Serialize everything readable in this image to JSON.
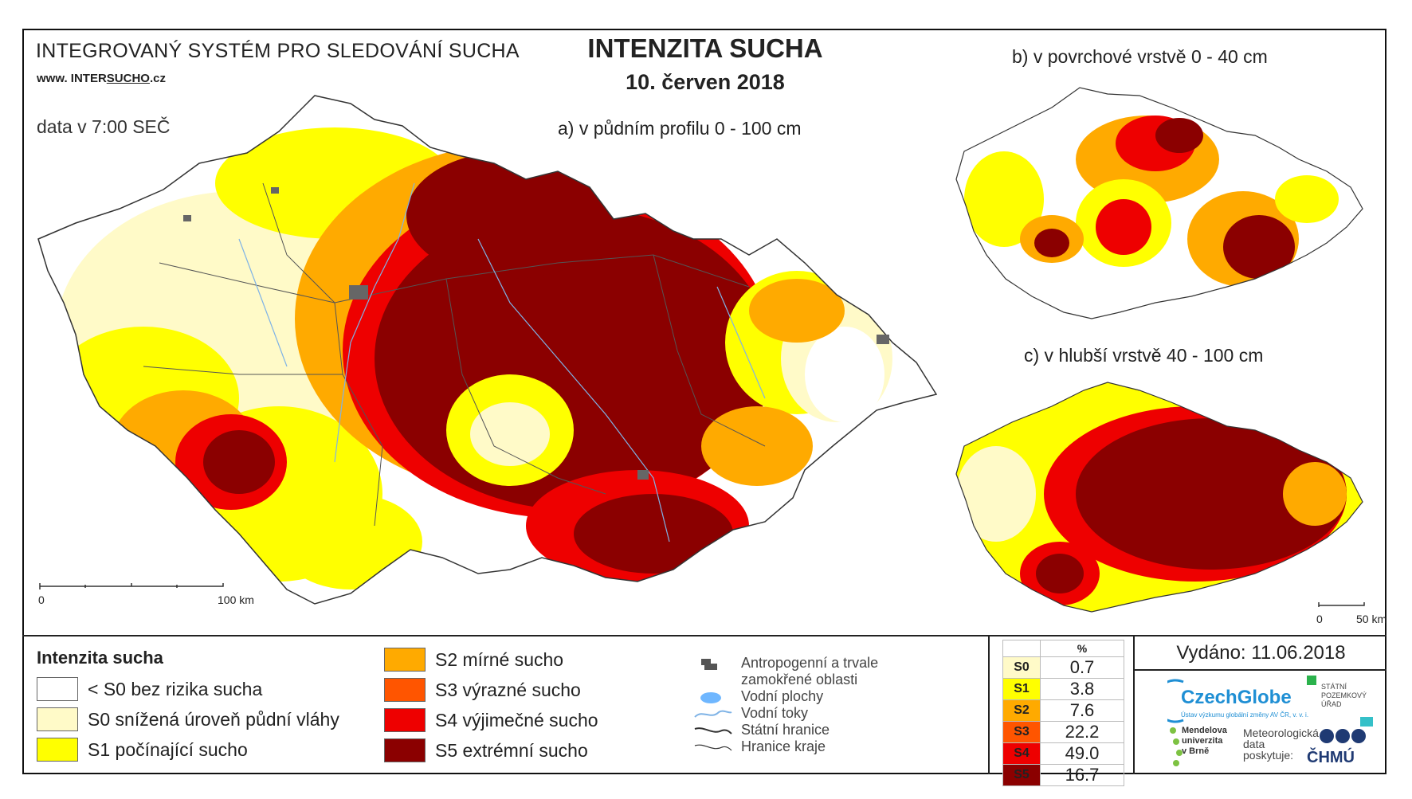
{
  "header": {
    "system_title": "INTEGROVANÝ SYSTÉM PRO SLEDOVÁNÍ SUCHA",
    "url_prefix": "www. INTER",
    "url_mid": "SUCHO",
    "url_suffix": ".cz",
    "data_time": "data v 7:00 SEČ",
    "main_title": "INTENZITA SUCHA",
    "date": "10. červen 2018"
  },
  "maps": {
    "a_label": "a) v půdním profilu 0 - 100 cm",
    "b_label": "b) v povrchové vrstvě 0 - 40 cm",
    "c_label": "c) v hlubší vrstvě 40 - 100 cm",
    "scale_a_start": "0",
    "scale_a_end": "100 km",
    "scale_c_start": "0",
    "scale_c_end": "50 km"
  },
  "legend": {
    "title": "Intenzita sucha",
    "items": [
      {
        "label": "< S0 bez rizika sucha",
        "color": "#ffffff"
      },
      {
        "label": "S0 snížená úroveň půdní vláhy",
        "color": "#fffac8"
      },
      {
        "label": "S1 počínající sucho",
        "color": "#ffff00"
      },
      {
        "label": "S2 mírné sucho",
        "color": "#ffaa00"
      },
      {
        "label": "S3 výrazné sucho",
        "color": "#ff5500"
      },
      {
        "label": "S4 výjimečné sucho",
        "color": "#ee0000"
      },
      {
        "label": "S5 extrémní sucho",
        "color": "#8b0000"
      }
    ],
    "symbols": [
      {
        "label": "Antropogenní a trvale",
        "icon": "urban-area-icon"
      },
      {
        "label": "zamokřené oblasti",
        "icon": ""
      },
      {
        "label": "Vodní plochy",
        "icon": "water-body-icon"
      },
      {
        "label": "Vodní toky",
        "icon": "river-icon"
      },
      {
        "label": "Státní hranice",
        "icon": "state-border-icon"
      },
      {
        "label": "Hranice kraje",
        "icon": "region-border-icon"
      }
    ]
  },
  "stats": {
    "header": "%",
    "rows": [
      {
        "code": "S0",
        "value": "0.7",
        "color": "#fffac8"
      },
      {
        "code": "S1",
        "value": "3.8",
        "color": "#ffff00"
      },
      {
        "code": "S2",
        "value": "7.6",
        "color": "#ffaa00"
      },
      {
        "code": "S3",
        "value": "22.2",
        "color": "#ff5500"
      },
      {
        "code": "S4",
        "value": "49.0",
        "color": "#ee0000"
      },
      {
        "code": "S5",
        "value": "16.7",
        "color": "#8b0000"
      }
    ]
  },
  "footer": {
    "issued": "Vydáno: 11.06.2018",
    "czechglobe": "CzechGlobe",
    "czechglobe_sub": "Ústav výzkumu globální změny AV ČR, v. v. i.",
    "spu_line1": "STÁTNÍ",
    "spu_line2": "POZEMKOVÝ",
    "spu_line3": "ÚŘAD",
    "mendel_line1": "Mendelova",
    "mendel_line2": "univerzita",
    "mendel_line3": "v Brně",
    "meteo_line1": "Meteorologická",
    "meteo_line2": "data",
    "meteo_line3": "poskytuje:",
    "chmu": "ČHMÚ"
  }
}
